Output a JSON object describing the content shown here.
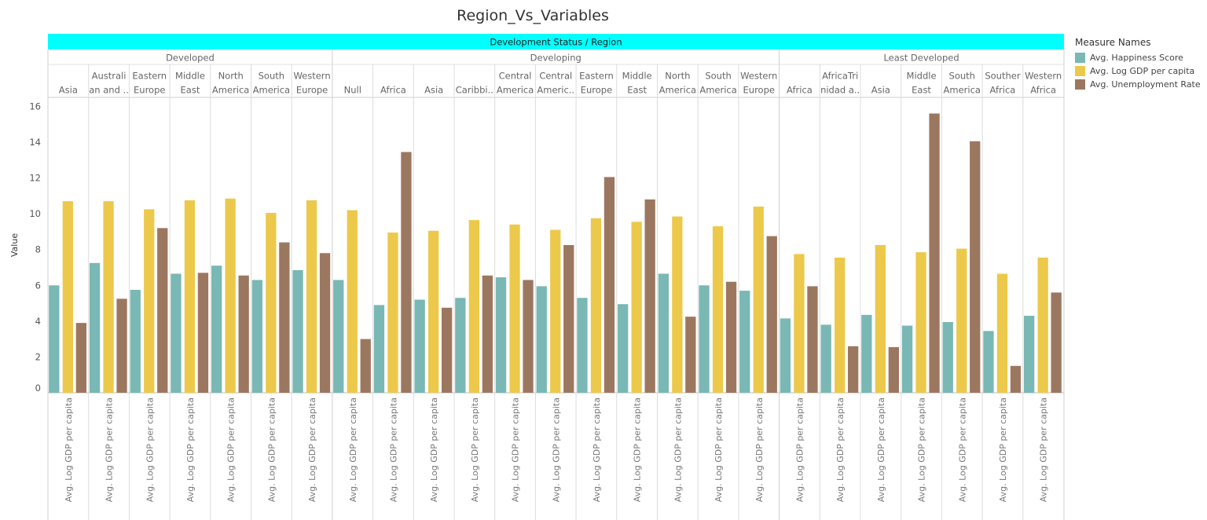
{
  "chart_data": {
    "type": "bar",
    "title": "Region_Vs_Variables",
    "header": "Development Status / Region",
    "ylabel": "Value",
    "ylim": [
      0,
      16.5
    ],
    "yticks": [
      0,
      2,
      4,
      6,
      8,
      10,
      12,
      14,
      16
    ],
    "grid": false,
    "legend_position": "right",
    "legend_title": "Measure Names",
    "x_axis_label": "Avg. Log GDP per capita",
    "series": [
      {
        "name": "Avg. Happiness Score",
        "color": "#79b8b4"
      },
      {
        "name": "Avg. Log GDP per capita",
        "color": "#ecc94b"
      },
      {
        "name": "Avg. Unemployment Rate",
        "color": "#9c7760"
      }
    ],
    "groups": [
      {
        "name": "Developed",
        "regions": [
          {
            "label": [
              "Asia"
            ],
            "values": [
              6.0,
              10.7,
              3.9
            ]
          },
          {
            "label": [
              "Australi",
              "an and .."
            ],
            "values": [
              7.25,
              10.7,
              5.25
            ]
          },
          {
            "label": [
              "Eastern",
              "Europe"
            ],
            "values": [
              5.75,
              10.25,
              9.2
            ]
          },
          {
            "label": [
              "Middle",
              "East"
            ],
            "values": [
              6.65,
              10.75,
              6.7
            ]
          },
          {
            "label": [
              "North",
              "America"
            ],
            "values": [
              7.1,
              10.85,
              6.55
            ]
          },
          {
            "label": [
              "South",
              "America"
            ],
            "values": [
              6.3,
              10.05,
              8.4
            ]
          },
          {
            "label": [
              "Western",
              "Europe"
            ],
            "values": [
              6.85,
              10.75,
              7.8
            ]
          }
        ]
      },
      {
        "name": "Developing",
        "regions": [
          {
            "label": [
              "Null"
            ],
            "values": [
              6.3,
              10.2,
              3.0
            ]
          },
          {
            "label": [
              "Africa"
            ],
            "values": [
              4.9,
              8.95,
              13.45
            ]
          },
          {
            "label": [
              "Asia"
            ],
            "values": [
              5.2,
              9.05,
              4.75
            ]
          },
          {
            "label": [
              "Caribbi.."
            ],
            "values": [
              5.3,
              9.65,
              6.55
            ]
          },
          {
            "label": [
              "Central",
              "America"
            ],
            "values": [
              6.45,
              9.4,
              6.3
            ]
          },
          {
            "label": [
              "Central",
              "Americ.."
            ],
            "values": [
              5.95,
              9.1,
              8.25
            ]
          },
          {
            "label": [
              "Eastern",
              "Europe"
            ],
            "values": [
              5.3,
              9.75,
              12.05
            ]
          },
          {
            "label": [
              "Middle",
              "East"
            ],
            "values": [
              4.95,
              9.55,
              10.8
            ]
          },
          {
            "label": [
              "North",
              "America"
            ],
            "values": [
              6.65,
              9.85,
              4.25
            ]
          },
          {
            "label": [
              "South",
              "America"
            ],
            "values": [
              6.0,
              9.3,
              6.2
            ]
          },
          {
            "label": [
              "Western",
              "Europe"
            ],
            "values": [
              5.7,
              10.4,
              8.75
            ]
          }
        ]
      },
      {
        "name": "Least Developed",
        "regions": [
          {
            "label": [
              "Africa"
            ],
            "values": [
              4.15,
              7.75,
              5.95
            ]
          },
          {
            "label": [
              "AfricaTri",
              "nidad a.."
            ],
            "values": [
              3.8,
              7.55,
              2.6
            ]
          },
          {
            "label": [
              "Asia"
            ],
            "values": [
              4.35,
              8.25,
              2.55
            ]
          },
          {
            "label": [
              "Middle",
              "East"
            ],
            "values": [
              3.75,
              7.85,
              15.6
            ]
          },
          {
            "label": [
              "South",
              "America"
            ],
            "values": [
              3.95,
              8.05,
              14.05
            ]
          },
          {
            "label": [
              "Souther",
              "Africa"
            ],
            "values": [
              3.45,
              6.65,
              1.5
            ]
          },
          {
            "label": [
              "Western",
              "Africa"
            ],
            "values": [
              4.3,
              7.55,
              5.6
            ]
          }
        ]
      }
    ]
  }
}
